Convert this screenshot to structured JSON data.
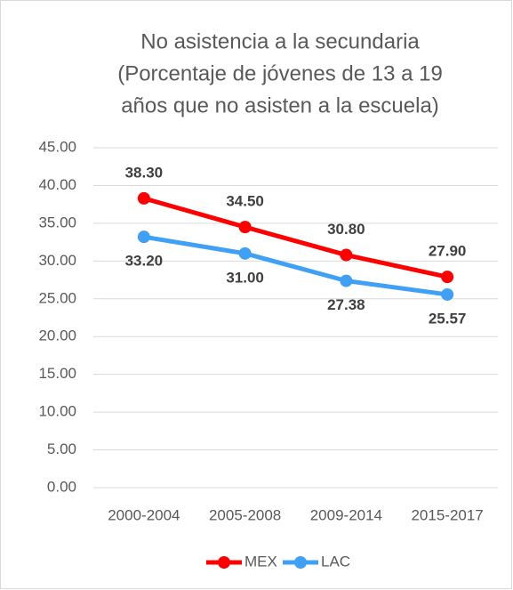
{
  "chart_data": {
    "type": "line",
    "title": [
      "No asistencia a la secundaria",
      "(Porcentaje de jóvenes de 13 a 19",
      "años que no asisten a la escuela)"
    ],
    "categories": [
      "2000-2004",
      "2005-2008",
      "2009-2014",
      "2015-2017"
    ],
    "series": [
      {
        "name": "MEX",
        "color": "#ff0000",
        "values": [
          38.3,
          34.5,
          30.8,
          27.9
        ],
        "value_labels": [
          "38.30",
          "34.50",
          "30.80",
          "27.90"
        ]
      },
      {
        "name": "LAC",
        "color": "#3fa0f5",
        "values": [
          33.2,
          31.0,
          27.38,
          25.57
        ],
        "value_labels": [
          "33.20",
          "31.00",
          "27.38",
          "25.57"
        ]
      }
    ],
    "ylim": [
      0,
      45
    ],
    "yticks": [
      {
        "value": 0,
        "label": "0.00"
      },
      {
        "value": 5,
        "label": "5.00"
      },
      {
        "value": 10,
        "label": "10.00"
      },
      {
        "value": 15,
        "label": "15.00"
      },
      {
        "value": 20,
        "label": "20.00"
      },
      {
        "value": 25,
        "label": "25.00"
      },
      {
        "value": 30,
        "label": "30.00"
      },
      {
        "value": 35,
        "label": "35.00"
      },
      {
        "value": 40,
        "label": "40.00"
      },
      {
        "value": 45,
        "label": "45.00"
      }
    ],
    "grid": true,
    "legend": "bottom"
  }
}
